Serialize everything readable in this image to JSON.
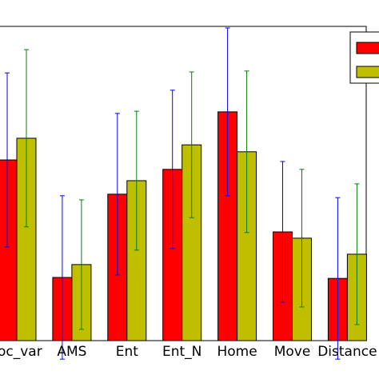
{
  "chart_data": {
    "type": "bar",
    "categories": [
      "oc_var",
      "AMS",
      "Ent",
      "Ent_N",
      "Home",
      "Move",
      "Distance"
    ],
    "series": [
      {
        "color": "#ff0000",
        "error_color": "#0000ff",
        "values": [
          57.5,
          20.1,
          46.6,
          54.5,
          72.8,
          34.6,
          19.8
        ],
        "errors": [
          27.7,
          26.0,
          25.7,
          25.2,
          26.7,
          22.4,
          25.7
        ]
      },
      {
        "color": "#bfbf00",
        "error_color": "#008000",
        "values": [
          64.4,
          24.2,
          50.9,
          62.3,
          60.1,
          32.6,
          27.5
        ],
        "errors": [
          28.2,
          20.6,
          22.1,
          23.2,
          25.7,
          21.9,
          22.4
        ]
      }
    ],
    "ylim": [
      0,
      100
    ],
    "legend": "upper right"
  }
}
